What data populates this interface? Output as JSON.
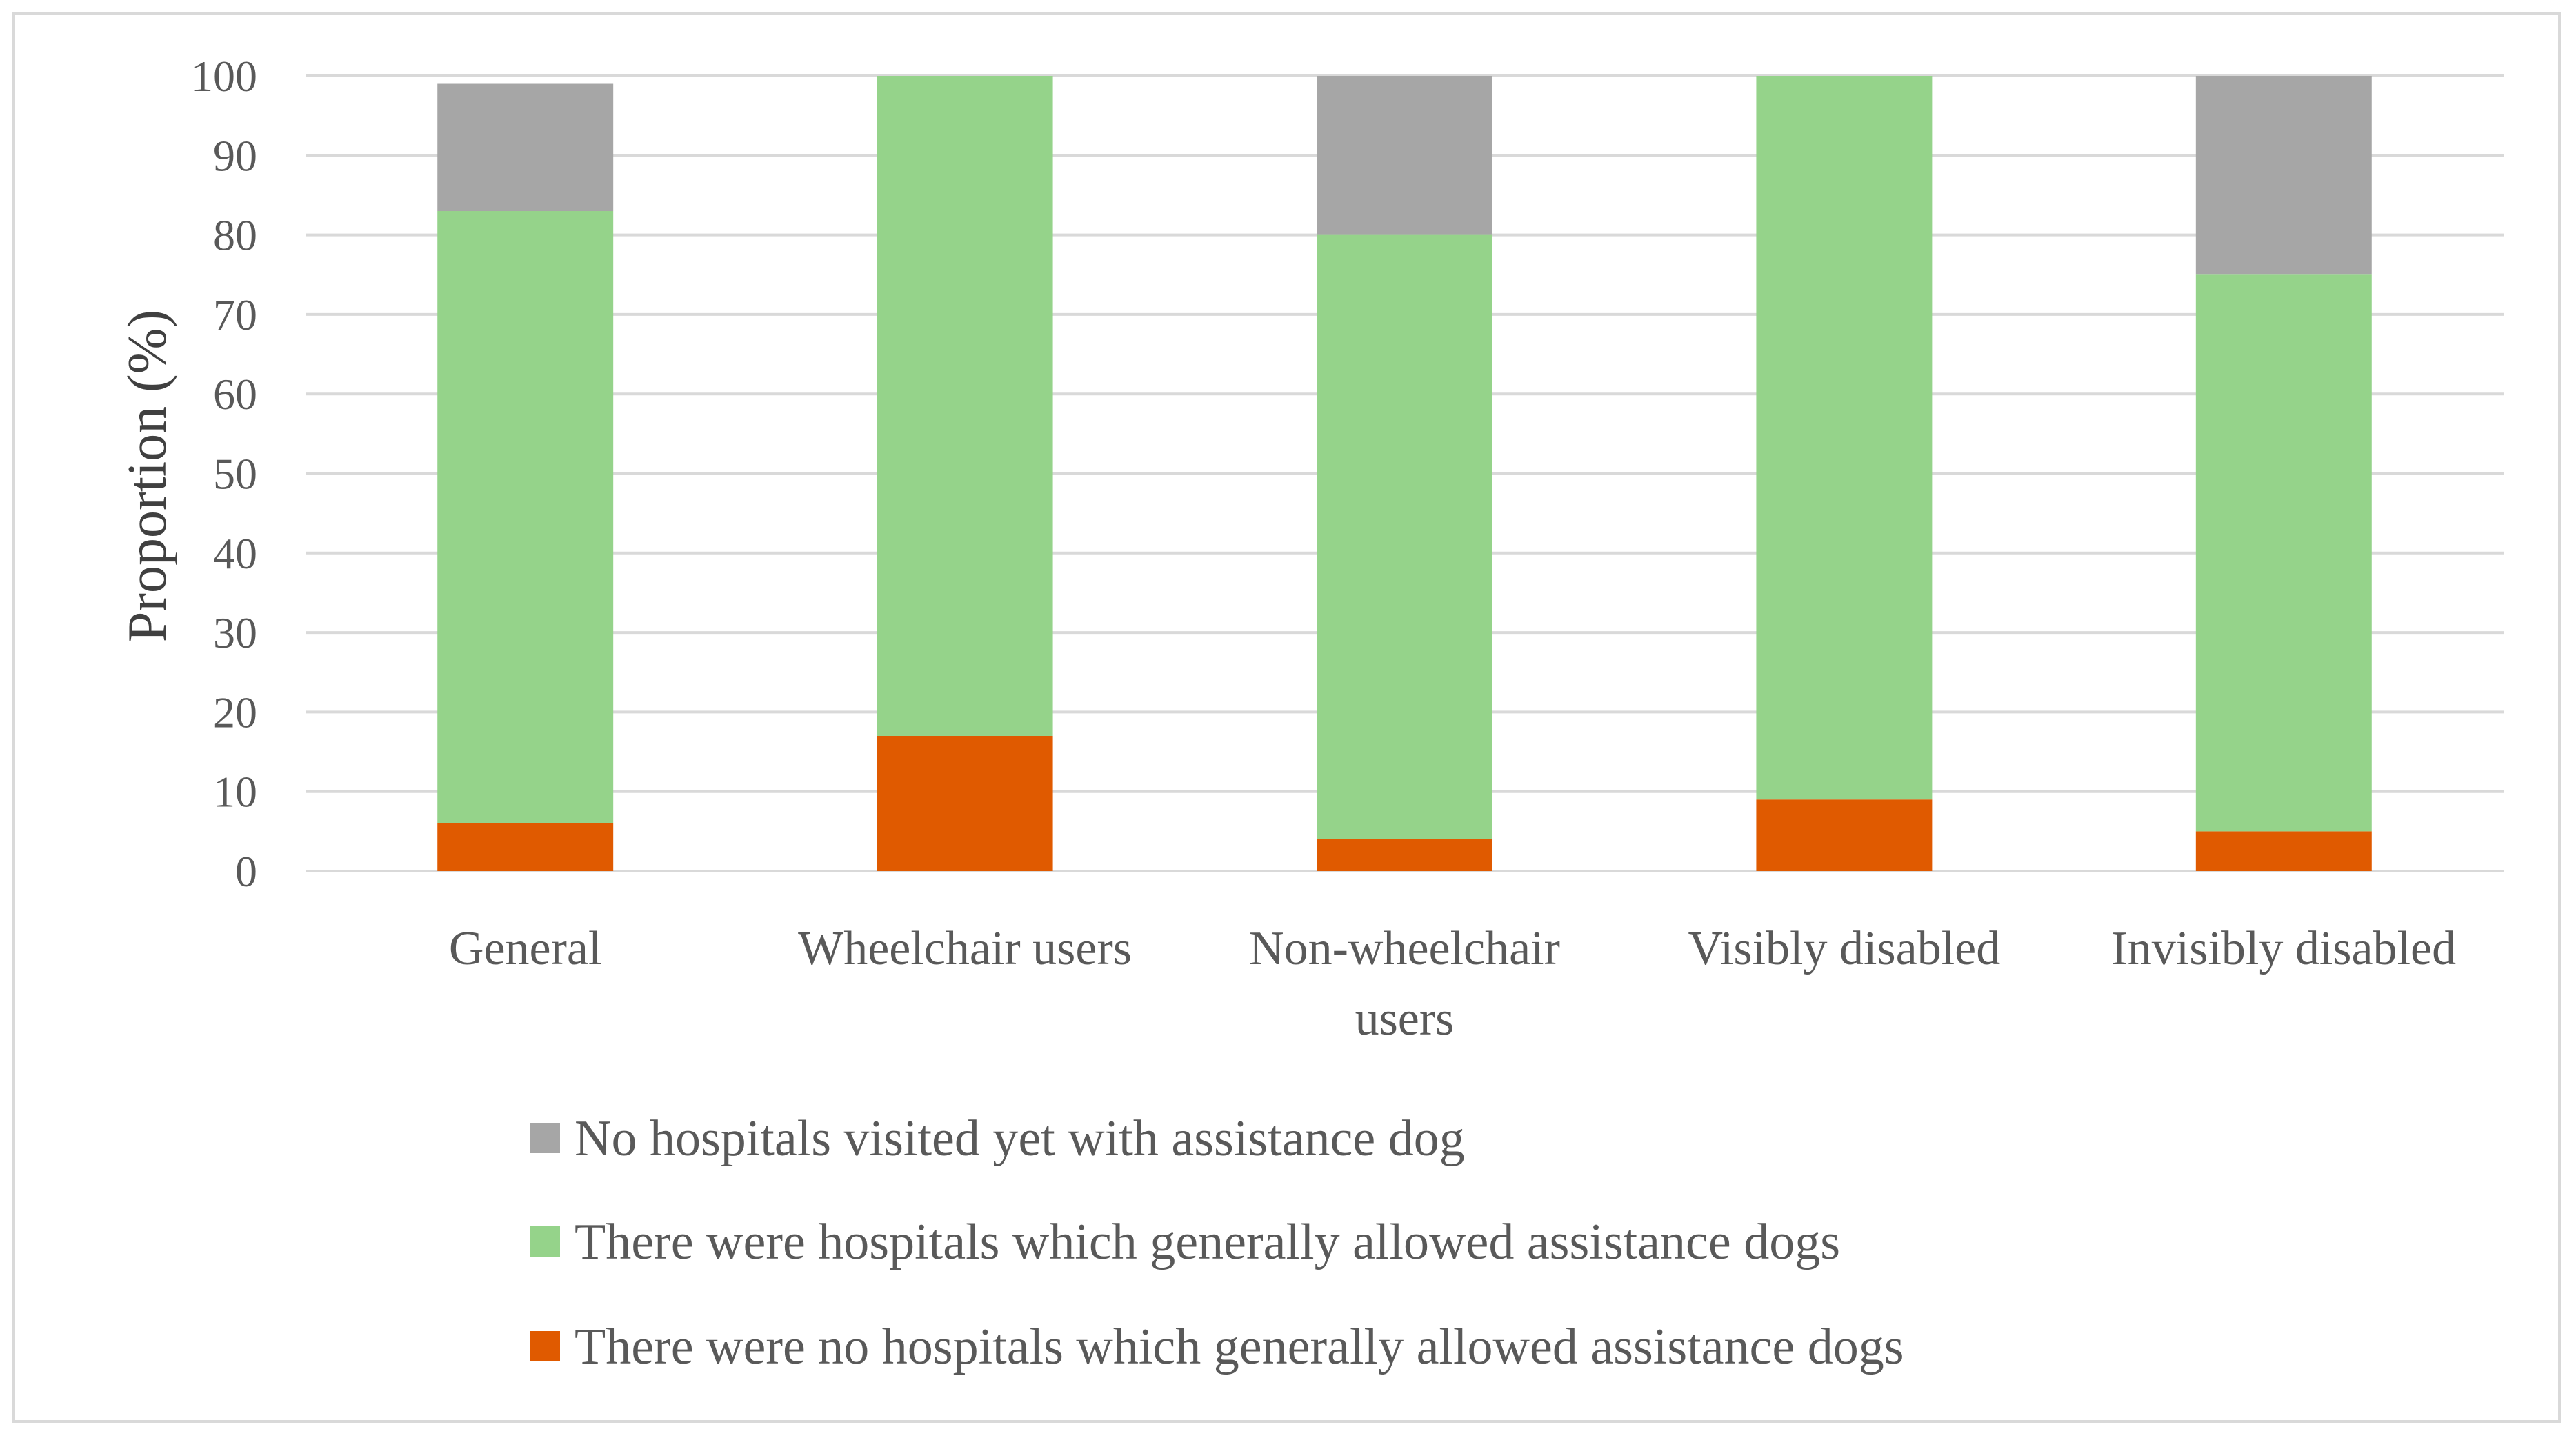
{
  "chart_data": {
    "type": "bar",
    "stacked": true,
    "title": "",
    "xlabel": "",
    "ylabel": "Proportion (%)",
    "ylim": [
      0,
      100
    ],
    "yticks": [
      0,
      10,
      20,
      30,
      40,
      50,
      60,
      70,
      80,
      90,
      100
    ],
    "grid": true,
    "legend_position": "bottom",
    "categories": [
      [
        "General"
      ],
      [
        "Wheelchair users"
      ],
      [
        "Non-wheelchair",
        "users"
      ],
      [
        "Visibly disabled"
      ],
      [
        "Invisibly disabled"
      ]
    ],
    "series": [
      {
        "name": "There were no hospitals which generally allowed assistance dogs",
        "color": "#e05a00",
        "values": [
          6,
          17,
          4,
          9,
          5
        ]
      },
      {
        "name": "There were hospitals which generally allowed assistance dogs",
        "color": "#95d38a",
        "values": [
          77,
          83,
          76,
          91,
          70
        ]
      },
      {
        "name": "No hospitals visited yet with assistance dog",
        "color": "#a6a6a6",
        "values": [
          16,
          0,
          20,
          0,
          25
        ]
      }
    ],
    "legend_order": [
      2,
      1,
      0
    ]
  }
}
